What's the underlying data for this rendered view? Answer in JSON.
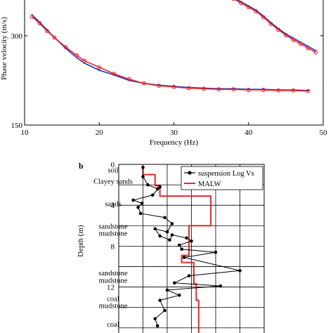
{
  "chart_data": [
    {
      "type": "line",
      "panel_label": "",
      "xlabel": "Frequency (Hz)",
      "ylabel": "Phase velocity (m/s)",
      "xlim": [
        10,
        50
      ],
      "ylim": [
        150,
        360
      ],
      "xticks": [
        10,
        20,
        30,
        40,
        50
      ],
      "yticks": [
        150,
        300
      ],
      "grid": false,
      "colors": {
        "blue": "#1f33c8",
        "red": "#e8262a"
      },
      "series": [
        {
          "key": "s1_blue",
          "color": "#1f33c8",
          "marker": "none",
          "x": [
            11,
            12,
            13,
            14,
            15.5,
            17,
            18,
            20,
            22,
            24,
            26,
            28,
            30,
            32,
            34,
            36,
            38,
            40,
            42,
            44,
            46,
            48
          ],
          "y": [
            335,
            323,
            310,
            297,
            279,
            263,
            254,
            242,
            234,
            225,
            220,
            217,
            215,
            213,
            212,
            211,
            211,
            210,
            210,
            209,
            209,
            208
          ]
        },
        {
          "key": "s1_red",
          "color": "#e8262a",
          "marker": "circle",
          "x": [
            11,
            12,
            13,
            14,
            15.5,
            17,
            18,
            20,
            22,
            24,
            26,
            28,
            30,
            32,
            34,
            36,
            38,
            40,
            42,
            44,
            46,
            48
          ],
          "y": [
            332,
            321,
            308,
            297,
            281,
            267,
            258,
            247,
            236,
            227,
            220,
            216,
            214,
            212,
            211,
            210,
            210,
            209,
            209,
            208,
            208,
            207
          ]
        },
        {
          "key": "s2_blue",
          "color": "#1f33c8",
          "marker": "none",
          "x": [
            38,
            39,
            40,
            41,
            42,
            43,
            44,
            45,
            46,
            47,
            48,
            49
          ],
          "y": [
            364,
            357,
            350,
            343,
            333,
            322,
            312,
            303,
            296,
            289,
            282,
            275
          ]
        },
        {
          "key": "s2_red",
          "color": "#e8262a",
          "marker": "circle",
          "x": [
            38,
            39,
            40,
            41,
            42,
            43,
            44,
            45,
            46,
            47,
            48,
            49
          ],
          "y": [
            362,
            355,
            348,
            341,
            331,
            320,
            310,
            301,
            293,
            286,
            279,
            272
          ]
        }
      ]
    },
    {
      "type": "line",
      "panel_label": "b",
      "xlabel": "",
      "ylabel": "Depth (m)",
      "ylim": [
        0,
        16.5
      ],
      "yinverted": true,
      "xlim": [
        50,
        350
      ],
      "yticks": [
        0,
        4,
        8,
        12
      ],
      "grid": true,
      "legend_position": "top-right",
      "legend": [
        {
          "label": "suspension Log Vs",
          "color": "#000000",
          "marker": "circle"
        },
        {
          "label": "MALW",
          "color": "#e8262a",
          "marker": "none"
        }
      ],
      "layer_labels": [
        {
          "text": "soil",
          "depth": 0.5
        },
        {
          "text": "Clayey sands",
          "depth": 1.6
        },
        {
          "text": "sands",
          "depth": 3.8
        },
        {
          "text": "sandstone",
          "depth": 6.0
        },
        {
          "text": "mudstone",
          "depth": 6.7
        },
        {
          "text": "sandstone",
          "depth": 10.6
        },
        {
          "text": "mudstone",
          "depth": 11.3
        },
        {
          "text": "coal",
          "depth": 13.1
        },
        {
          "text": "mudstone",
          "depth": 13.8
        },
        {
          "text": "coal",
          "depth": 15.6
        }
      ],
      "series": [
        {
          "name": "suspension Log Vs",
          "color": "#000000",
          "marker": "circle",
          "vs": [
            100,
            100,
            110,
            130,
            135,
            120,
            80,
            98,
            90,
            95,
            145,
            160,
            150,
            125,
            135,
            155,
            160,
            190,
            200,
            175,
            180,
            250,
            185,
            300,
            195,
            165,
            260,
            150,
            175,
            135,
            145,
            125,
            130
          ],
          "depth": [
            0.3,
            1.2,
            2.0,
            2.4,
            2.2,
            3.0,
            3.5,
            3.8,
            4.2,
            4.8,
            5.2,
            5.8,
            6.6,
            6.3,
            7.0,
            7.4,
            6.9,
            7.2,
            7.5,
            7.9,
            8.3,
            8.6,
            9.1,
            10.4,
            10.9,
            11.6,
            11.9,
            12.3,
            12.8,
            13.3,
            14.3,
            15.1,
            15.8
          ]
        },
        {
          "name": "MALW",
          "color": "#e8262a",
          "marker": "none",
          "vs": [
            100,
            100,
            125,
            125,
            135,
            135,
            240,
            240,
            195,
            195,
            180,
            180,
            205,
            205,
            210,
            210,
            215,
            215
          ],
          "depth": [
            0,
            1.0,
            1.0,
            2.1,
            2.1,
            3.1,
            3.1,
            6.0,
            6.0,
            8.9,
            8.9,
            9.6,
            9.6,
            11.7,
            11.7,
            13.3,
            13.3,
            16.5
          ]
        }
      ]
    }
  ]
}
